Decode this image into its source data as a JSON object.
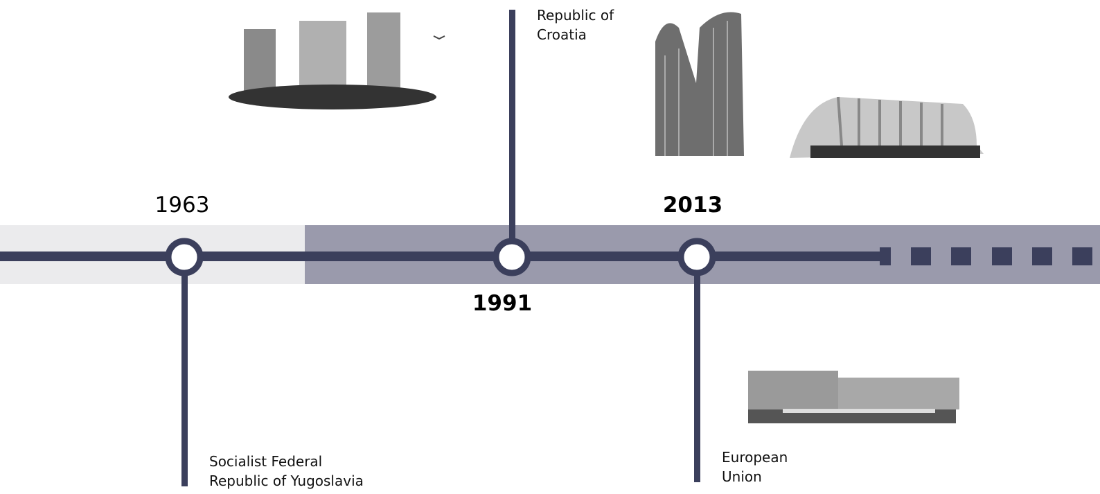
{
  "events": [
    {
      "year": "1963",
      "label_lines": [
        "Socialist Federal",
        "Republic of Yugoslavia"
      ]
    },
    {
      "year": "1991",
      "label_lines": [
        "Republic of",
        "Croatia"
      ]
    },
    {
      "year": "2013",
      "label_lines": [
        "European",
        "Union"
      ]
    }
  ]
}
